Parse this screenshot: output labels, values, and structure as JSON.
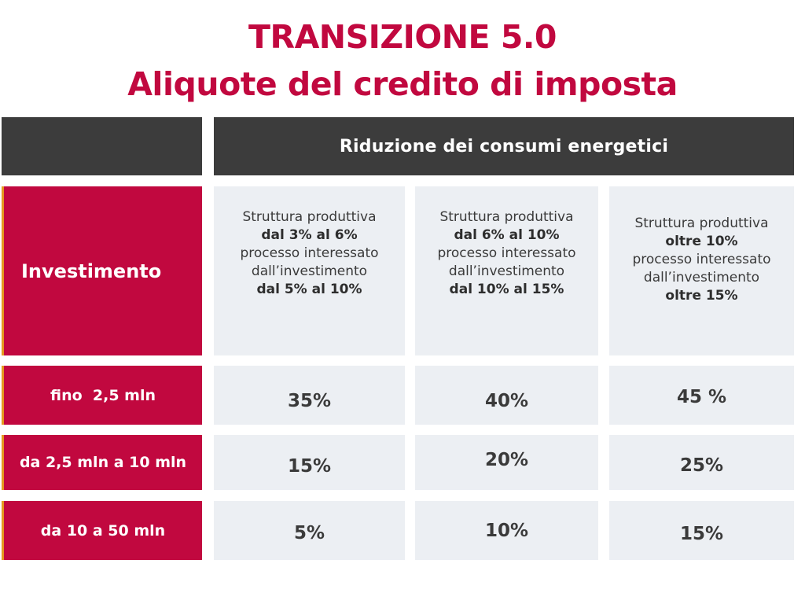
{
  "title": {
    "line1": "TRANSIZIONE 5.0",
    "line2": "Aliquote del credito di imposta"
  },
  "header": {
    "column_group": "Riduzione dei consumi energetici"
  },
  "row_header": "Investimento",
  "columns": [
    {
      "line1": "Struttura produttiva",
      "line2": "dal 3% al 6%",
      "line3": "processo interessato",
      "line4": "dall’investimento",
      "line5": "dal 5% al 10%"
    },
    {
      "line1": "Struttura produttiva",
      "line2": "dal 6% al 10%",
      "line3": "processo interessato",
      "line4": "dall’investimento",
      "line5": "dal 10% al 15%"
    },
    {
      "line1": "Struttura produttiva",
      "line2": "oltre 10%",
      "line3": "processo interessato",
      "line4": "dall’investimento",
      "line5": "oltre 15%"
    }
  ],
  "rows": [
    {
      "label": "fino  2,5 mln",
      "values": [
        "35%",
        "40%",
        "45 %"
      ]
    },
    {
      "label": "da 2,5 mln a 10 mln",
      "values": [
        "15%",
        "20%",
        "25%"
      ]
    },
    {
      "label": "da 10 a 50 mln",
      "values": [
        "5%",
        "10%",
        "15%"
      ]
    }
  ],
  "colors": {
    "accent_red": "#c1083f",
    "header_dark": "#3c3c3c",
    "cell_grey": "#eceff3",
    "left_edge_orange": "#e59a1f"
  }
}
